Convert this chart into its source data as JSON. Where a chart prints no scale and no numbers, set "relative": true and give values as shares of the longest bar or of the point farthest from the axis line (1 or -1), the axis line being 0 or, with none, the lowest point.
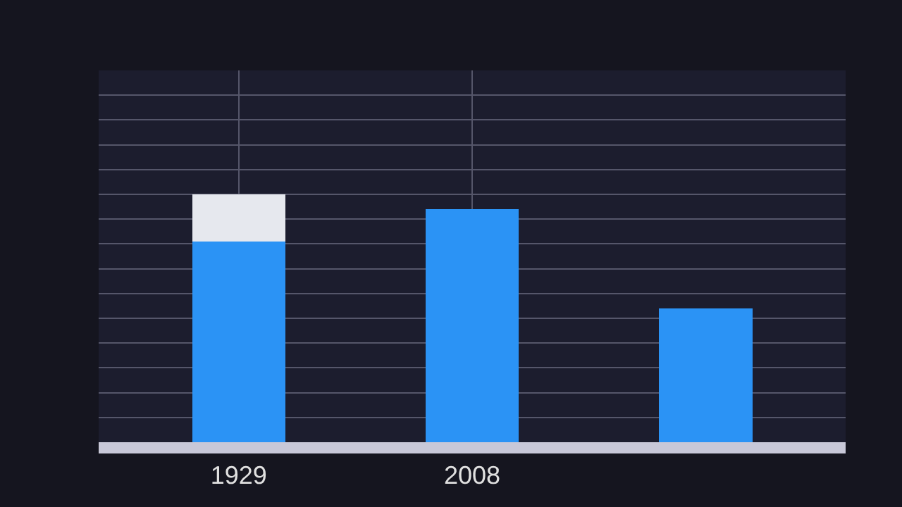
{
  "chart_data": {
    "type": "bar",
    "relative": true,
    "stacked": true,
    "grid": true,
    "categories": [
      "1929",
      "2008",
      null
    ],
    "series": [
      {
        "color": "#2b93f5",
        "values": [
          0.81,
          0.94,
          0.54
        ]
      },
      {
        "color": "#e6e8ee",
        "values": [
          0.19,
          null,
          null
        ]
      }
    ]
  }
}
